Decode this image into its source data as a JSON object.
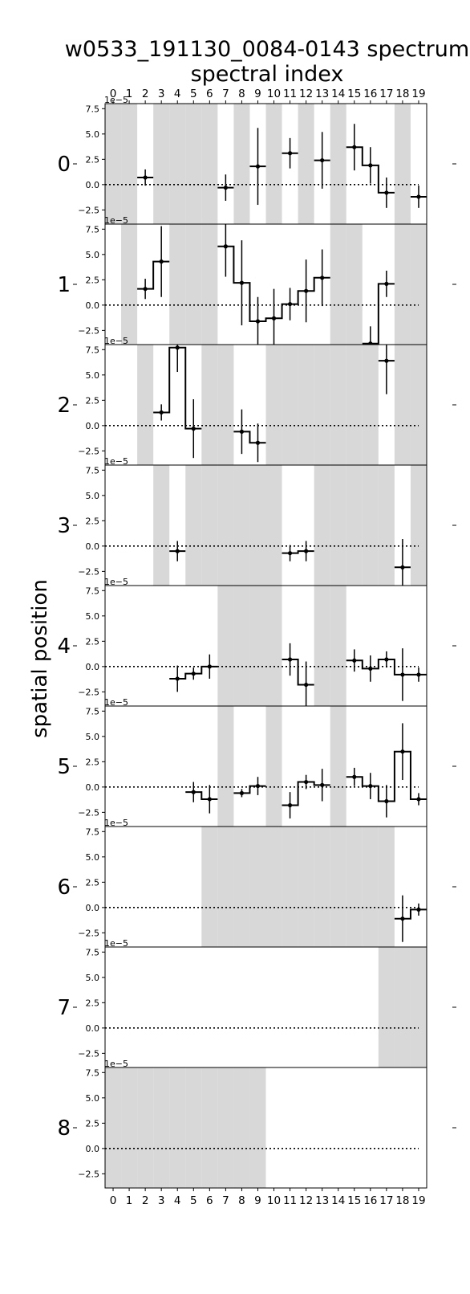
{
  "chart_data": {
    "type": "step-errorbar-grid",
    "title_lines": [
      "w0533_191130_0084-0143 spectrum",
      "spectral index"
    ],
    "ylabel": "spatial position",
    "x_ticks": [
      0,
      1,
      2,
      3,
      4,
      5,
      6,
      7,
      8,
      9,
      10,
      11,
      12,
      13,
      14,
      15,
      16,
      17,
      18,
      19
    ],
    "y_ticks": [
      -2.5,
      0.0,
      2.5,
      5.0,
      7.5
    ],
    "y_tick_labels": [
      "−2.5",
      "0.0",
      "2.5",
      "5.0",
      "7.5"
    ],
    "offset_label": "1e−5",
    "xlim": [
      -0.5,
      19.5
    ],
    "ylim": [
      -3.9,
      8.0
    ],
    "reference_line": 0,
    "masked_color": "#d8d8d8",
    "rows": [
      {
        "label": "0",
        "masked": [
          0,
          1,
          3,
          4,
          5,
          6,
          8,
          10,
          12,
          14,
          18
        ],
        "points": [
          {
            "x": 2,
            "y": 0.7,
            "err": 0.8
          },
          {
            "x": 7,
            "y": -0.3,
            "err": 1.3
          },
          {
            "x": 9,
            "y": 1.8,
            "err": 3.8
          },
          {
            "x": 11,
            "y": 3.1,
            "err": 1.5
          },
          {
            "x": 13,
            "y": 2.4,
            "err": 2.8
          },
          {
            "x": 15,
            "y": 3.7,
            "err": 2.3
          },
          {
            "x": 16,
            "y": 1.9,
            "err": 1.8
          },
          {
            "x": 17,
            "y": -0.8,
            "err": 1.5
          },
          {
            "x": 19,
            "y": -1.2,
            "err": 1.1
          }
        ]
      },
      {
        "label": "1",
        "masked": [
          1,
          4,
          5,
          6,
          14,
          15,
          18,
          19
        ],
        "points": [
          {
            "x": 2,
            "y": 1.6,
            "err": 1.0
          },
          {
            "x": 3,
            "y": 4.3,
            "err": 3.5
          },
          {
            "x": 7,
            "y": 5.8,
            "err": 3.0
          },
          {
            "x": 8,
            "y": 2.2,
            "err": 4.2
          },
          {
            "x": 9,
            "y": -1.6,
            "err": 2.4
          },
          {
            "x": 10,
            "y": -1.3,
            "err": 2.9
          },
          {
            "x": 11,
            "y": 0.1,
            "err": 1.6
          },
          {
            "x": 12,
            "y": 1.4,
            "err": 3.1
          },
          {
            "x": 13,
            "y": 2.7,
            "err": 2.8
          },
          {
            "x": 16,
            "y": -3.8,
            "err": 1.7
          },
          {
            "x": 17,
            "y": 2.1,
            "err": 1.3
          }
        ]
      },
      {
        "label": "2",
        "masked": [
          2,
          6,
          7,
          10,
          11,
          12,
          13,
          14,
          15,
          16,
          18,
          19
        ],
        "points": [
          {
            "x": 3,
            "y": 1.3,
            "err": 0.8
          },
          {
            "x": 4,
            "y": 7.7,
            "err": 2.4
          },
          {
            "x": 5,
            "y": -0.3,
            "err": 2.9
          },
          {
            "x": 8,
            "y": -0.6,
            "err": 2.2
          },
          {
            "x": 9,
            "y": -1.7,
            "err": 1.9
          },
          {
            "x": 17,
            "y": 6.4,
            "err": 3.3
          }
        ]
      },
      {
        "label": "3",
        "masked": [
          3,
          5,
          6,
          7,
          8,
          9,
          10,
          13,
          14,
          15,
          16,
          17,
          19
        ],
        "points": [
          {
            "x": 4,
            "y": -0.5,
            "err": 1.0
          },
          {
            "x": 11,
            "y": -0.7,
            "err": 0.8
          },
          {
            "x": 12,
            "y": -0.5,
            "err": 1.0
          },
          {
            "x": 18,
            "y": -2.1,
            "err": 2.8
          }
        ]
      },
      {
        "label": "4",
        "masked": [
          7,
          8,
          9,
          10,
          13,
          14
        ],
        "points": [
          {
            "x": 4,
            "y": -1.2,
            "err": 1.3
          },
          {
            "x": 5,
            "y": -0.7,
            "err": 0.6
          },
          {
            "x": 6,
            "y": 0.0,
            "err": 1.2
          },
          {
            "x": 11,
            "y": 0.7,
            "err": 1.6
          },
          {
            "x": 12,
            "y": -1.8,
            "err": 2.3
          },
          {
            "x": 15,
            "y": 0.6,
            "err": 1.1
          },
          {
            "x": 16,
            "y": -0.2,
            "err": 1.3
          },
          {
            "x": 17,
            "y": 0.7,
            "err": 0.8
          },
          {
            "x": 18,
            "y": -0.8,
            "err": 2.6
          },
          {
            "x": 19,
            "y": -0.8,
            "err": 0.7
          }
        ]
      },
      {
        "label": "5",
        "masked": [
          7,
          10,
          14
        ],
        "points": [
          {
            "x": 5,
            "y": -0.5,
            "err": 1.0
          },
          {
            "x": 6,
            "y": -1.2,
            "err": 1.4
          },
          {
            "x": 8,
            "y": -0.6,
            "err": 0.4
          },
          {
            "x": 9,
            "y": 0.1,
            "err": 0.9
          },
          {
            "x": 11,
            "y": -1.8,
            "err": 1.3
          },
          {
            "x": 12,
            "y": 0.5,
            "err": 0.7
          },
          {
            "x": 13,
            "y": 0.2,
            "err": 1.6
          },
          {
            "x": 15,
            "y": 1.0,
            "err": 0.9
          },
          {
            "x": 16,
            "y": 0.1,
            "err": 1.3
          },
          {
            "x": 17,
            "y": -1.4,
            "err": 1.6
          },
          {
            "x": 18,
            "y": 3.5,
            "err": 2.8
          },
          {
            "x": 19,
            "y": -1.2,
            "err": 0.6
          }
        ]
      },
      {
        "label": "6",
        "masked": [
          6,
          7,
          8,
          9,
          10,
          11,
          12,
          13,
          14,
          15,
          16,
          17
        ],
        "points": [
          {
            "x": 18,
            "y": -1.1,
            "err": 2.3
          },
          {
            "x": 19,
            "y": -0.2,
            "err": 0.6
          }
        ]
      },
      {
        "label": "7",
        "masked": [
          17,
          18,
          19
        ],
        "points": []
      },
      {
        "label": "8",
        "masked": [
          0,
          1,
          2,
          3,
          4,
          5,
          6,
          7,
          8,
          9
        ],
        "points": []
      }
    ]
  }
}
